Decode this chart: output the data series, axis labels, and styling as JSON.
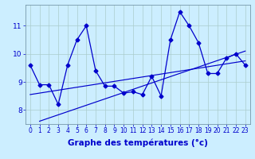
{
  "xlabel": "Graphe des températures (°c)",
  "x": [
    0,
    1,
    2,
    3,
    4,
    5,
    6,
    7,
    8,
    9,
    10,
    11,
    12,
    13,
    14,
    15,
    16,
    17,
    18,
    19,
    20,
    21,
    22,
    23
  ],
  "y_main": [
    9.6,
    8.9,
    8.9,
    8.2,
    9.6,
    10.5,
    11.0,
    9.4,
    8.85,
    8.85,
    8.6,
    8.65,
    8.55,
    9.2,
    8.5,
    10.5,
    11.5,
    11.0,
    10.4,
    9.3,
    9.3,
    9.85,
    10.0,
    9.6
  ],
  "trend1_x": [
    1,
    23
  ],
  "trend1_y": [
    7.6,
    10.1
  ],
  "trend2_x": [
    0,
    23
  ],
  "trend2_y": [
    8.55,
    9.75
  ],
  "ylim_min": 7.5,
  "ylim_max": 11.75,
  "yticks": [
    8,
    9,
    10,
    11
  ],
  "xticks": [
    0,
    1,
    2,
    3,
    4,
    5,
    6,
    7,
    8,
    9,
    10,
    11,
    12,
    13,
    14,
    15,
    16,
    17,
    18,
    19,
    20,
    21,
    22,
    23
  ],
  "line_color": "#0000cc",
  "bg_color": "#cceeff",
  "grid_color": "#aacccc",
  "tick_label_fontsize": 5.5,
  "xlabel_fontsize": 7.5
}
